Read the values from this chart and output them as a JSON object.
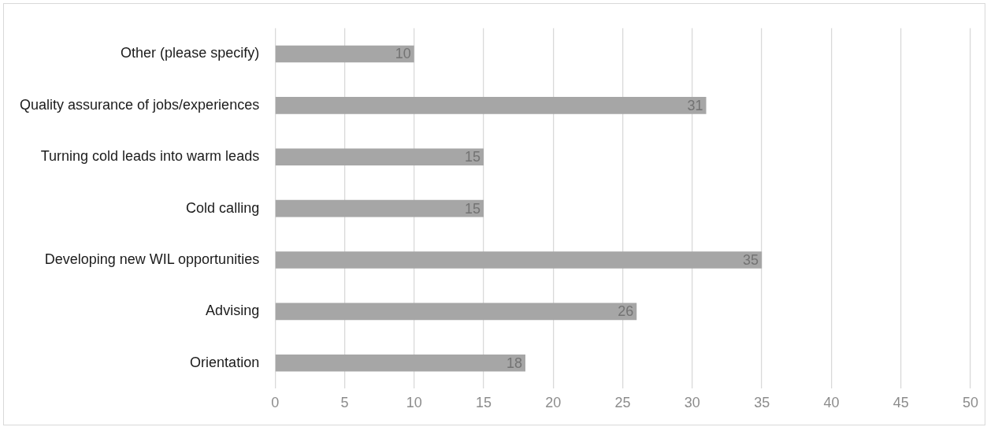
{
  "chart_data": {
    "type": "bar",
    "orientation": "horizontal",
    "categories": [
      "Other (please specify)",
      "Quality assurance of jobs/experiences",
      "Turning cold leads into warm leads",
      "Cold calling",
      "Developing new WIL opportunities",
      "Advising",
      "Orientation"
    ],
    "values": [
      10,
      31,
      15,
      15,
      35,
      26,
      18
    ],
    "color": "#a6a6a6",
    "xlim": [
      0,
      50
    ],
    "xticks": [
      0,
      5,
      10,
      15,
      20,
      25,
      30,
      35,
      40,
      45,
      50
    ],
    "grid": "x",
    "legend": false,
    "data_labels": true
  }
}
